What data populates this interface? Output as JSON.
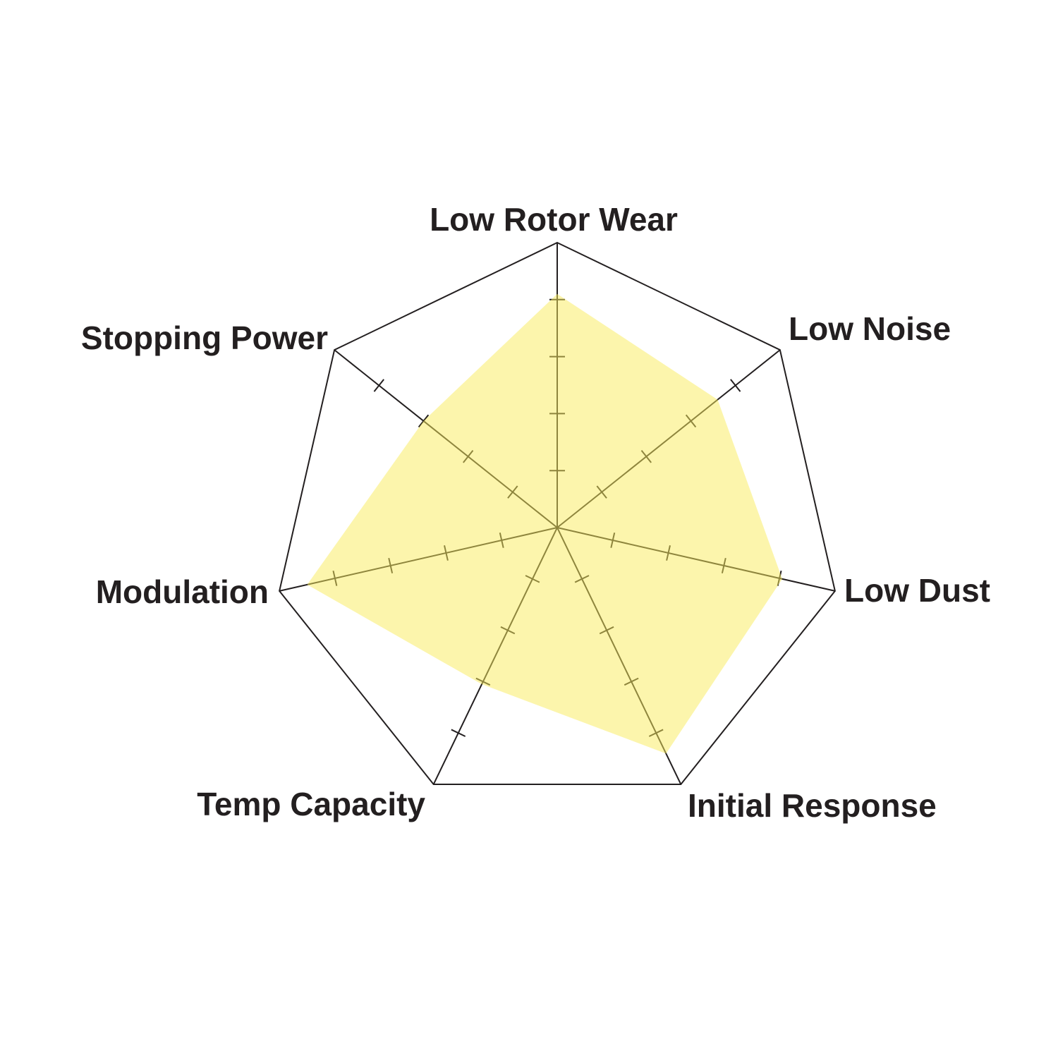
{
  "chart_data": {
    "type": "radar",
    "title": "",
    "categories": [
      "Low Rotor Wear",
      "Low Noise",
      "Low Dust",
      "Initial Response",
      "Temp Capacity",
      "Modulation",
      "Stopping Power"
    ],
    "values": [
      4.1,
      3.6,
      4.05,
      4.4,
      3.05,
      4.5,
      3.0
    ],
    "range": [
      0,
      5
    ],
    "ticks": [
      1,
      2,
      3,
      4,
      5
    ],
    "grid": false,
    "legend": "none",
    "colors": {
      "fill": "#f9ec5a",
      "outline": "#231f20",
      "text": "#231f20"
    }
  }
}
